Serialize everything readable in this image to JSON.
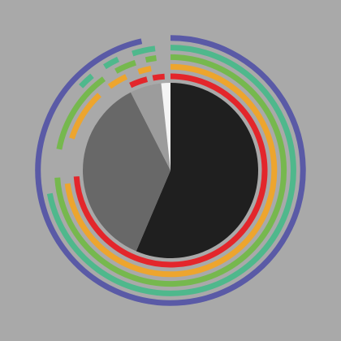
{
  "chart_data": {
    "type": "pie",
    "values": [
      56.4,
      36.1,
      5.8,
      1.7
    ],
    "colors": [
      "#1f1f1f",
      "#686868",
      "#9c9c9c",
      "#f4f4f4"
    ],
    "rings": [
      {
        "color": "#e3262b",
        "segments": [
          {
            "start": 0,
            "end": 74
          },
          {
            "start": 93,
            "end": 96
          },
          {
            "start": 97,
            "end": 99
          }
        ]
      },
      {
        "color": "#eda52e",
        "segments": [
          {
            "start": 0,
            "end": 73
          },
          {
            "start": 80,
            "end": 88
          },
          {
            "start": 90,
            "end": 93
          },
          {
            "start": 95,
            "end": 97
          }
        ]
      },
      {
        "color": "#76b84e",
        "segments": [
          {
            "start": 0,
            "end": 74
          },
          {
            "start": 78,
            "end": 90
          },
          {
            "start": 92,
            "end": 95
          },
          {
            "start": 96.5,
            "end": 98
          }
        ]
      },
      {
        "color": "#4fb88c",
        "segments": [
          {
            "start": 0,
            "end": 72
          },
          {
            "start": 87,
            "end": 89
          },
          {
            "start": 91,
            "end": 93
          },
          {
            "start": 95,
            "end": 98
          }
        ]
      },
      {
        "color": "#5a5aa6",
        "segments": [
          {
            "start": 0,
            "end": 96.5
          }
        ]
      }
    ]
  }
}
